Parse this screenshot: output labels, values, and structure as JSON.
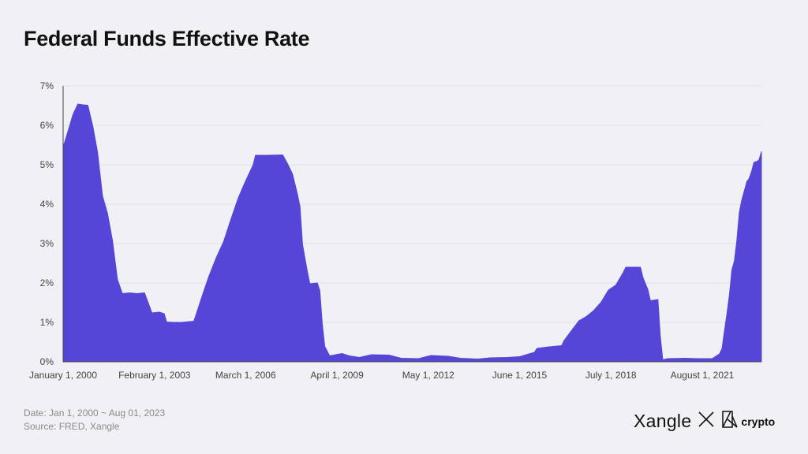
{
  "title": "Federal Funds Effective Rate",
  "footer": {
    "date_line": "Date: Jan 1, 2000 ~ Aug 01, 2023",
    "source_line": "Source: FRED, Xangle"
  },
  "brand": {
    "main": "Xangle",
    "partner": "crypto",
    "separator_icon": "cross-icon",
    "partner_icon": "crypto-logo-icon"
  },
  "colors": {
    "area_fill": "#5646d8",
    "grid": "#e0e0ea",
    "axis": "#444444"
  },
  "chart_data": {
    "type": "area",
    "title": "Federal Funds Effective Rate",
    "xlabel": "",
    "ylabel": "",
    "ylim": [
      0,
      7
    ],
    "xlim": [
      "2000-01-01",
      "2023-08-01"
    ],
    "grid": "horizontal",
    "y_ticks": [
      {
        "value": 0,
        "label": "0%"
      },
      {
        "value": 1,
        "label": "1%"
      },
      {
        "value": 2,
        "label": "2%"
      },
      {
        "value": 3,
        "label": "3%"
      },
      {
        "value": 4,
        "label": "4%"
      },
      {
        "value": 5,
        "label": "5%"
      },
      {
        "value": 6,
        "label": "6%"
      },
      {
        "value": 7,
        "label": "7%"
      }
    ],
    "x_ticks": [
      {
        "date": "2000-01-01",
        "label": "January 1, 2000"
      },
      {
        "date": "2003-02-01",
        "label": "February 1, 2003"
      },
      {
        "date": "2006-03-01",
        "label": "March 1, 2006"
      },
      {
        "date": "2009-04-01",
        "label": "April 1, 2009"
      },
      {
        "date": "2012-05-01",
        "label": "May 1, 2012"
      },
      {
        "date": "2015-06-01",
        "label": "June 1, 2015"
      },
      {
        "date": "2018-07-01",
        "label": "July 1, 2018"
      },
      {
        "date": "2021-08-01",
        "label": "August 1, 2021"
      }
    ],
    "points": [
      [
        "2000-01-01",
        5.45
      ],
      [
        "2000-03-01",
        5.85
      ],
      [
        "2000-05-01",
        6.27
      ],
      [
        "2000-07-01",
        6.54
      ],
      [
        "2000-09-01",
        6.52
      ],
      [
        "2000-11-01",
        6.51
      ],
      [
        "2001-01-01",
        5.98
      ],
      [
        "2001-03-01",
        5.31
      ],
      [
        "2001-05-01",
        4.21
      ],
      [
        "2001-07-01",
        3.77
      ],
      [
        "2001-09-01",
        3.07
      ],
      [
        "2001-11-01",
        2.09
      ],
      [
        "2002-01-01",
        1.73
      ],
      [
        "2002-04-01",
        1.75
      ],
      [
        "2002-07-01",
        1.73
      ],
      [
        "2002-10-01",
        1.75
      ],
      [
        "2003-01-01",
        1.24
      ],
      [
        "2003-04-01",
        1.26
      ],
      [
        "2003-06-01",
        1.22
      ],
      [
        "2003-07-01",
        1.01
      ],
      [
        "2003-10-01",
        1.0
      ],
      [
        "2004-01-01",
        1.0
      ],
      [
        "2004-06-01",
        1.03
      ],
      [
        "2004-09-01",
        1.61
      ],
      [
        "2004-12-01",
        2.16
      ],
      [
        "2005-03-01",
        2.63
      ],
      [
        "2005-06-01",
        3.04
      ],
      [
        "2005-09-01",
        3.62
      ],
      [
        "2005-12-01",
        4.16
      ],
      [
        "2006-03-01",
        4.59
      ],
      [
        "2006-06-01",
        4.99
      ],
      [
        "2006-07-01",
        5.24
      ],
      [
        "2006-12-01",
        5.24
      ],
      [
        "2007-06-01",
        5.25
      ],
      [
        "2007-08-01",
        5.02
      ],
      [
        "2007-10-01",
        4.76
      ],
      [
        "2007-12-01",
        4.24
      ],
      [
        "2008-01-01",
        3.94
      ],
      [
        "2008-02-01",
        2.98
      ],
      [
        "2008-04-01",
        2.28
      ],
      [
        "2008-05-01",
        1.98
      ],
      [
        "2008-08-01",
        2.0
      ],
      [
        "2008-09-01",
        1.81
      ],
      [
        "2008-10-01",
        0.97
      ],
      [
        "2008-11-01",
        0.39
      ],
      [
        "2009-01-01",
        0.15
      ],
      [
        "2009-06-01",
        0.21
      ],
      [
        "2009-09-01",
        0.15
      ],
      [
        "2010-01-01",
        0.11
      ],
      [
        "2010-06-01",
        0.18
      ],
      [
        "2011-01-01",
        0.17
      ],
      [
        "2011-06-01",
        0.09
      ],
      [
        "2012-01-01",
        0.08
      ],
      [
        "2012-06-01",
        0.16
      ],
      [
        "2013-01-01",
        0.14
      ],
      [
        "2013-06-01",
        0.09
      ],
      [
        "2014-01-01",
        0.07
      ],
      [
        "2014-06-01",
        0.1
      ],
      [
        "2015-01-01",
        0.11
      ],
      [
        "2015-06-01",
        0.13
      ],
      [
        "2015-12-01",
        0.24
      ],
      [
        "2016-01-01",
        0.34
      ],
      [
        "2016-06-01",
        0.38
      ],
      [
        "2016-11-01",
        0.41
      ],
      [
        "2016-12-01",
        0.54
      ],
      [
        "2017-03-01",
        0.79
      ],
      [
        "2017-06-01",
        1.04
      ],
      [
        "2017-09-01",
        1.15
      ],
      [
        "2017-12-01",
        1.3
      ],
      [
        "2018-03-01",
        1.51
      ],
      [
        "2018-06-01",
        1.82
      ],
      [
        "2018-09-01",
        1.95
      ],
      [
        "2018-12-01",
        2.27
      ],
      [
        "2019-01-01",
        2.4
      ],
      [
        "2019-07-01",
        2.4
      ],
      [
        "2019-08-01",
        2.13
      ],
      [
        "2019-10-01",
        1.83
      ],
      [
        "2019-11-01",
        1.55
      ],
      [
        "2020-02-01",
        1.58
      ],
      [
        "2020-03-01",
        0.65
      ],
      [
        "2020-04-01",
        0.05
      ],
      [
        "2020-06-01",
        0.08
      ],
      [
        "2021-01-01",
        0.09
      ],
      [
        "2021-06-01",
        0.08
      ],
      [
        "2021-12-01",
        0.08
      ],
      [
        "2022-03-01",
        0.2
      ],
      [
        "2022-04-01",
        0.33
      ],
      [
        "2022-05-01",
        0.77
      ],
      [
        "2022-06-01",
        1.21
      ],
      [
        "2022-07-01",
        1.68
      ],
      [
        "2022-08-01",
        2.33
      ],
      [
        "2022-09-01",
        2.56
      ],
      [
        "2022-10-01",
        3.08
      ],
      [
        "2022-11-01",
        3.78
      ],
      [
        "2022-12-01",
        4.1
      ],
      [
        "2023-01-01",
        4.33
      ],
      [
        "2023-02-01",
        4.57
      ],
      [
        "2023-03-01",
        4.65
      ],
      [
        "2023-04-01",
        4.83
      ],
      [
        "2023-05-01",
        5.06
      ],
      [
        "2023-06-01",
        5.08
      ],
      [
        "2023-07-01",
        5.12
      ],
      [
        "2023-08-01",
        5.33
      ]
    ]
  }
}
